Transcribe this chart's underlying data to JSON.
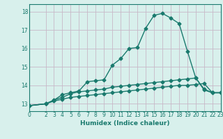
{
  "xlabel": "Humidex (Indice chaleur)",
  "bg_color": "#d8f0ec",
  "line_color": "#1a7a6e",
  "grid_color": "#c8b8c8",
  "xlim": [
    0,
    23
  ],
  "ylim": [
    12.6,
    18.4
  ],
  "xticks": [
    0,
    2,
    3,
    4,
    5,
    6,
    7,
    8,
    9,
    10,
    11,
    12,
    13,
    14,
    15,
    16,
    17,
    18,
    19,
    20,
    21,
    22,
    23
  ],
  "yticks": [
    13,
    14,
    15,
    16,
    17,
    18
  ],
  "line1_x": [
    0,
    2,
    3,
    4,
    5,
    6,
    7,
    8,
    9,
    10,
    11,
    12,
    13,
    14,
    15,
    16,
    17,
    18,
    19,
    20,
    21,
    22,
    23
  ],
  "line1_y": [
    12.9,
    13.0,
    13.15,
    13.25,
    13.35,
    13.4,
    13.45,
    13.5,
    13.55,
    13.6,
    13.65,
    13.7,
    13.75,
    13.8,
    13.85,
    13.9,
    13.95,
    14.0,
    14.0,
    14.05,
    14.1,
    13.6,
    13.6
  ],
  "line2_x": [
    0,
    2,
    3,
    4,
    5,
    6,
    7,
    8,
    9,
    10,
    11,
    12,
    13,
    14,
    15,
    16,
    17,
    18,
    19,
    20,
    21,
    22,
    23
  ],
  "line2_y": [
    12.9,
    13.0,
    13.2,
    13.35,
    13.55,
    13.65,
    13.7,
    13.75,
    13.8,
    13.9,
    13.95,
    14.0,
    14.05,
    14.1,
    14.15,
    14.2,
    14.25,
    14.3,
    14.35,
    14.4,
    13.8,
    13.6,
    13.6
  ],
  "line3_x": [
    0,
    2,
    3,
    4,
    5,
    6,
    7,
    8,
    9,
    10,
    11,
    12,
    13,
    14,
    15,
    16,
    17,
    18,
    19,
    20,
    21,
    22,
    23
  ],
  "line3_y": [
    12.9,
    13.0,
    13.2,
    13.5,
    13.6,
    13.7,
    14.2,
    14.25,
    14.3,
    15.1,
    15.45,
    16.0,
    16.05,
    17.1,
    17.8,
    17.9,
    17.65,
    17.35,
    15.85,
    14.4,
    13.75,
    13.6,
    13.6
  ],
  "marker": "D",
  "markersize": 2.5,
  "linewidth": 1.0
}
